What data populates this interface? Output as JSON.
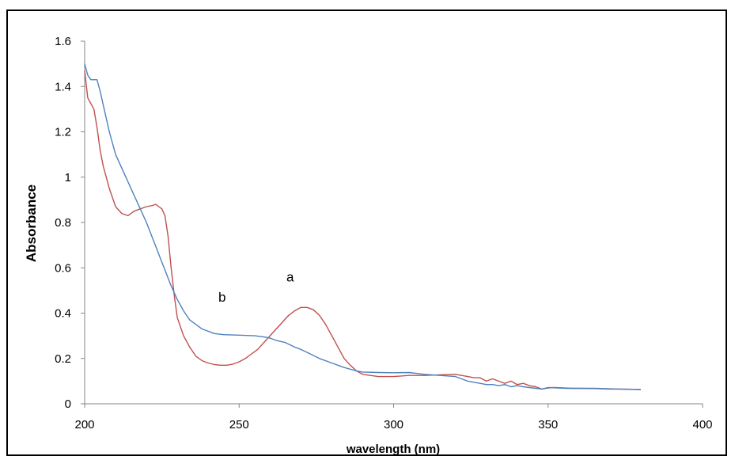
{
  "chart_data": {
    "type": "line",
    "xlabel": "wavelength (nm)",
    "ylabel": "Absorbance",
    "xlim": [
      200,
      400
    ],
    "ylim": [
      0,
      1.6
    ],
    "x_ticks": [
      "200",
      "250",
      "300",
      "350",
      "400"
    ],
    "y_ticks": [
      "0",
      "0.2",
      "0.4",
      "0.6",
      "0.8",
      "1",
      "1.2",
      "1.4",
      "1.6"
    ],
    "grid": false,
    "legend": "none",
    "annotations": [
      {
        "text": "a",
        "x": 266.5,
        "y": 0.54
      },
      {
        "text": "b",
        "x": 244.5,
        "y": 0.45
      }
    ],
    "series": [
      {
        "label": "a",
        "color": "#c0504d",
        "points": [
          [
            200,
            1.47
          ],
          [
            201,
            1.35
          ],
          [
            203,
            1.3
          ],
          [
            204,
            1.22
          ],
          [
            205,
            1.12
          ],
          [
            206,
            1.05
          ],
          [
            208,
            0.95
          ],
          [
            210,
            0.87
          ],
          [
            212,
            0.84
          ],
          [
            214,
            0.83
          ],
          [
            216,
            0.85
          ],
          [
            218,
            0.86
          ],
          [
            220,
            0.87
          ],
          [
            222,
            0.875
          ],
          [
            223,
            0.88
          ],
          [
            224,
            0.87
          ],
          [
            225,
            0.86
          ],
          [
            226,
            0.83
          ],
          [
            227,
            0.74
          ],
          [
            228,
            0.6
          ],
          [
            229,
            0.48
          ],
          [
            230,
            0.38
          ],
          [
            232,
            0.3
          ],
          [
            234,
            0.25
          ],
          [
            236,
            0.21
          ],
          [
            238,
            0.19
          ],
          [
            240,
            0.18
          ],
          [
            242,
            0.173
          ],
          [
            244,
            0.17
          ],
          [
            246,
            0.17
          ],
          [
            248,
            0.175
          ],
          [
            250,
            0.185
          ],
          [
            252,
            0.2
          ],
          [
            254,
            0.22
          ],
          [
            256,
            0.24
          ],
          [
            258,
            0.27
          ],
          [
            260,
            0.3
          ],
          [
            262,
            0.33
          ],
          [
            264,
            0.36
          ],
          [
            266,
            0.39
          ],
          [
            268,
            0.41
          ],
          [
            270,
            0.425
          ],
          [
            272,
            0.425
          ],
          [
            274,
            0.415
          ],
          [
            276,
            0.39
          ],
          [
            278,
            0.35
          ],
          [
            280,
            0.3
          ],
          [
            282,
            0.25
          ],
          [
            284,
            0.2
          ],
          [
            286,
            0.17
          ],
          [
            288,
            0.145
          ],
          [
            290,
            0.13
          ],
          [
            295,
            0.12
          ],
          [
            300,
            0.12
          ],
          [
            305,
            0.125
          ],
          [
            310,
            0.125
          ],
          [
            315,
            0.128
          ],
          [
            320,
            0.13
          ],
          [
            322,
            0.125
          ],
          [
            324,
            0.12
          ],
          [
            326,
            0.115
          ],
          [
            328,
            0.115
          ],
          [
            330,
            0.1
          ],
          [
            332,
            0.11
          ],
          [
            334,
            0.1
          ],
          [
            336,
            0.09
          ],
          [
            338,
            0.1
          ],
          [
            340,
            0.085
          ],
          [
            342,
            0.09
          ],
          [
            344,
            0.08
          ],
          [
            346,
            0.075
          ],
          [
            348,
            0.065
          ],
          [
            350,
            0.07
          ],
          [
            352,
            0.072
          ],
          [
            355,
            0.07
          ],
          [
            358,
            0.068
          ],
          [
            360,
            0.068
          ],
          [
            365,
            0.067
          ],
          [
            370,
            0.065
          ],
          [
            375,
            0.065
          ],
          [
            380,
            0.063
          ]
        ]
      },
      {
        "label": "b",
        "color": "#4f81bd",
        "points": [
          [
            200,
            1.5
          ],
          [
            201,
            1.45
          ],
          [
            202,
            1.43
          ],
          [
            203,
            1.43
          ],
          [
            204,
            1.43
          ],
          [
            205,
            1.38
          ],
          [
            206,
            1.32
          ],
          [
            208,
            1.2
          ],
          [
            210,
            1.1
          ],
          [
            212,
            1.04
          ],
          [
            214,
            0.98
          ],
          [
            216,
            0.92
          ],
          [
            218,
            0.86
          ],
          [
            220,
            0.8
          ],
          [
            222,
            0.73
          ],
          [
            224,
            0.66
          ],
          [
            226,
            0.59
          ],
          [
            228,
            0.52
          ],
          [
            230,
            0.46
          ],
          [
            232,
            0.41
          ],
          [
            234,
            0.37
          ],
          [
            236,
            0.35
          ],
          [
            238,
            0.33
          ],
          [
            240,
            0.32
          ],
          [
            242,
            0.31
          ],
          [
            245,
            0.305
          ],
          [
            250,
            0.303
          ],
          [
            255,
            0.3
          ],
          [
            258,
            0.295
          ],
          [
            260,
            0.29
          ],
          [
            262,
            0.28
          ],
          [
            265,
            0.27
          ],
          [
            268,
            0.25
          ],
          [
            270,
            0.24
          ],
          [
            273,
            0.22
          ],
          [
            276,
            0.2
          ],
          [
            280,
            0.18
          ],
          [
            284,
            0.16
          ],
          [
            288,
            0.145
          ],
          [
            290,
            0.14
          ],
          [
            295,
            0.138
          ],
          [
            300,
            0.137
          ],
          [
            305,
            0.138
          ],
          [
            310,
            0.13
          ],
          [
            315,
            0.125
          ],
          [
            320,
            0.12
          ],
          [
            322,
            0.11
          ],
          [
            324,
            0.1
          ],
          [
            326,
            0.095
          ],
          [
            328,
            0.09
          ],
          [
            330,
            0.085
          ],
          [
            332,
            0.085
          ],
          [
            334,
            0.08
          ],
          [
            336,
            0.085
          ],
          [
            338,
            0.075
          ],
          [
            340,
            0.08
          ],
          [
            342,
            0.075
          ],
          [
            345,
            0.07
          ],
          [
            348,
            0.065
          ],
          [
            350,
            0.072
          ],
          [
            353,
            0.07
          ],
          [
            356,
            0.068
          ],
          [
            360,
            0.068
          ],
          [
            365,
            0.068
          ],
          [
            370,
            0.066
          ],
          [
            375,
            0.064
          ],
          [
            380,
            0.063
          ]
        ]
      }
    ]
  }
}
